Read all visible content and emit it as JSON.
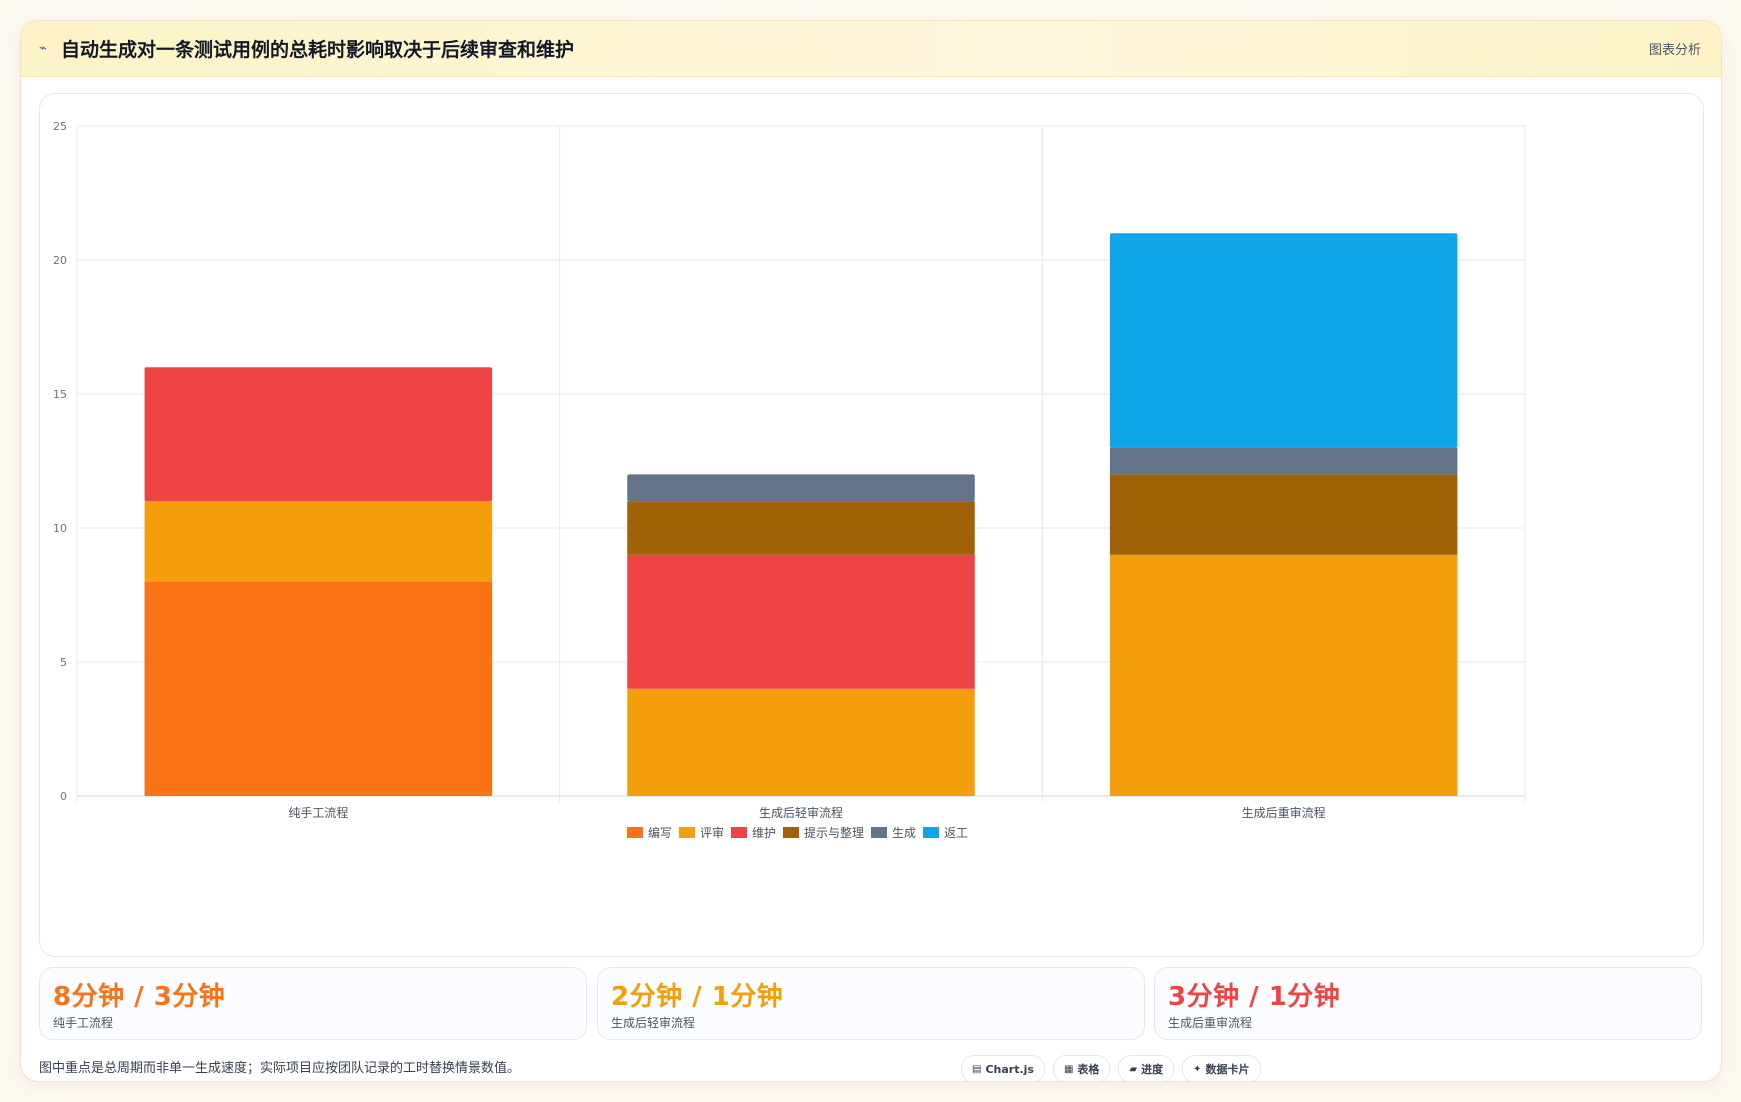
{
  "header": {
    "icon": "line-chart-icon",
    "title": "自动生成对一条测试用例的总耗时影响取决于后续审查和维护",
    "tag": "图表分析"
  },
  "chart_data": {
    "type": "bar",
    "stacked": true,
    "categories": [
      "纯手工流程",
      "生成后轻审流程",
      "生成后重审流程"
    ],
    "series": [
      {
        "name": "编写",
        "color": "#f97316",
        "values": [
          8,
          0,
          0
        ]
      },
      {
        "name": "评审",
        "color": "#f59e0b",
        "values": [
          3,
          4,
          9
        ]
      },
      {
        "name": "维护",
        "color": "#ef4444",
        "values": [
          5,
          5,
          0
        ]
      },
      {
        "name": "提示与整理",
        "color": "#a16207",
        "values": [
          0,
          2,
          3
        ]
      },
      {
        "name": "生成",
        "color": "#64748b",
        "values": [
          0,
          1,
          1
        ]
      },
      {
        "name": "返工",
        "color": "#0ea5e9",
        "values": [
          0,
          0,
          8
        ]
      }
    ],
    "ylim": [
      0,
      25
    ],
    "yticks": [
      0,
      5,
      10,
      15,
      20,
      25
    ],
    "grid": true,
    "legend": "bottom"
  },
  "stats": [
    {
      "value": "8分钟 / 3分钟",
      "label": "纯手工流程",
      "color": "#f97316"
    },
    {
      "value": "2分钟 / 1分钟",
      "label": "生成后轻审流程",
      "color": "#f59e0b"
    },
    {
      "value": "3分钟 / 1分钟",
      "label": "生成后重审流程",
      "color": "#ef4444"
    }
  ],
  "footnote": "图中重点是总周期而非单一生成速度；实际项目应按团队记录的工时替换情景数值。",
  "badges": [
    {
      "icon": "chart-icon",
      "glyph": "▤",
      "label": "Chart.js"
    },
    {
      "icon": "table-icon",
      "glyph": "▦",
      "label": "表格"
    },
    {
      "icon": "progress-icon",
      "glyph": "▰",
      "label": "进度"
    },
    {
      "icon": "sparkle-icon",
      "glyph": "✦",
      "label": "数据卡片"
    }
  ]
}
